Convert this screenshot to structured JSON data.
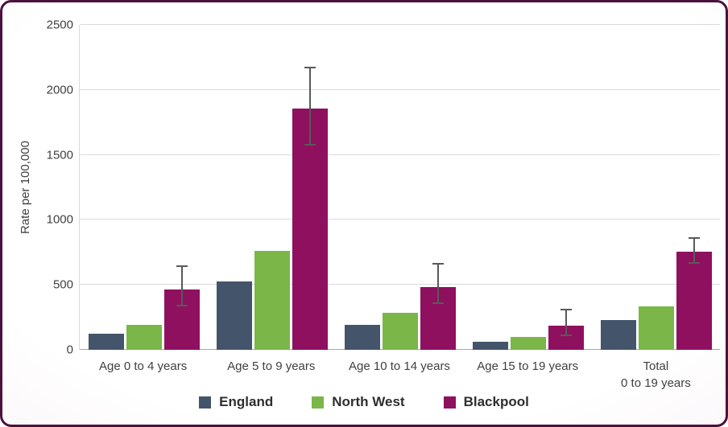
{
  "chart_data": {
    "type": "bar",
    "title": "",
    "ylabel": "Rate per 100,000",
    "xlabel": "",
    "ylim": [
      0,
      2500
    ],
    "yticks": [
      0,
      500,
      1000,
      1500,
      2000,
      2500
    ],
    "grid": true,
    "legend_position": "bottom",
    "categories": [
      "Age 0 to 4 years",
      "Age 5 to 9 years",
      "Age 10 to 14 years",
      "Age 15 to 19 years",
      "Total\n0 to 19 years"
    ],
    "series": [
      {
        "name": "England",
        "color": "#44546A",
        "values": [
          125,
          525,
          195,
          65,
          230
        ]
      },
      {
        "name": "North West",
        "color": "#7AB648",
        "values": [
          195,
          760,
          285,
          100,
          335
        ]
      },
      {
        "name": "Blackpool",
        "color": "#8E105F",
        "values": [
          465,
          1855,
          485,
          185,
          755
        ],
        "error_bars": {
          "low": [
            340,
            1580,
            360,
            110,
            670
          ],
          "high": [
            645,
            2175,
            660,
            310,
            860
          ]
        }
      }
    ]
  },
  "colors": {
    "frame_border": "#4B123E",
    "gridline": "#D9D9D9",
    "axis_line": "#A6A6A6",
    "error_bar": "#595959",
    "text": "#404040"
  }
}
